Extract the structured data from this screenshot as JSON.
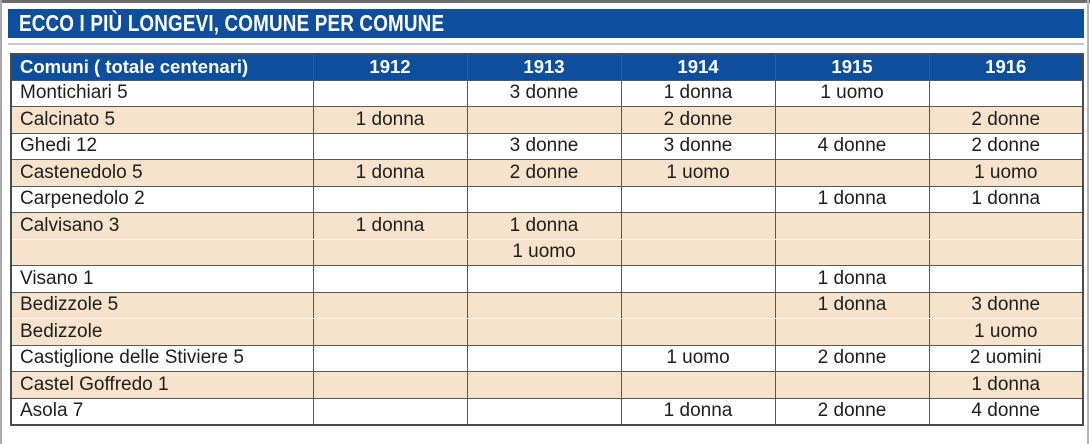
{
  "title": {
    "text": "ECCO I PIÙ LONGEVI, COMUNE PER COMUNE"
  },
  "colors": {
    "accent_blue": "#0e4f9d",
    "row_shaded": "#f7e3cc",
    "grid_border": "#57585b",
    "text": "#1d1d1b",
    "header_text": "#ffffff"
  },
  "table": {
    "header": {
      "comuni": "Comuni ( totale centenari)",
      "years": [
        "1912",
        "1913",
        "1914",
        "1915",
        "1916"
      ]
    },
    "rows": [
      {
        "comune": "Montichiari 5",
        "cells": [
          "",
          "3 donne",
          "1 donna",
          "1 uomo",
          ""
        ],
        "shaded": false
      },
      {
        "comune": "Calcinato 5",
        "cells": [
          "1 donna",
          "",
          "2 donne",
          "",
          "2 donne"
        ],
        "shaded": true
      },
      {
        "comune": "Ghedi 12",
        "cells": [
          "",
          "3 donne",
          "3 donne",
          "4 donne",
          "2 donne"
        ],
        "shaded": false
      },
      {
        "comune": "Castenedolo 5",
        "cells": [
          "1 donna",
          "2 donne",
          "1 uomo",
          "",
          "1 uomo"
        ],
        "shaded": true
      },
      {
        "comune": "Carpenedolo 2",
        "cells": [
          "",
          "",
          "",
          "1 donna",
          "1 donna"
        ],
        "shaded": false
      },
      {
        "comune": "Calvisano 3",
        "cells": [
          "1 donna",
          "1 donna",
          "",
          "",
          ""
        ],
        "shaded": true,
        "divider_below": "light"
      },
      {
        "comune": "",
        "cells": [
          "",
          "1 uomo",
          "",
          "",
          ""
        ],
        "shaded": true,
        "divider_above": "light"
      },
      {
        "comune": "Visano 1",
        "cells": [
          "",
          "",
          "",
          "1 donna",
          ""
        ],
        "shaded": false
      },
      {
        "comune": "Bedizzole 5",
        "cells": [
          "",
          "",
          "",
          "1 donna",
          "3 donne"
        ],
        "shaded": true,
        "divider_below": "light"
      },
      {
        "comune": "Bedizzole",
        "cells": [
          "",
          "",
          "",
          "",
          "1 uomo"
        ],
        "shaded": true,
        "divider_above": "light"
      },
      {
        "comune": "Castiglione delle Stiviere 5",
        "cells": [
          "",
          "",
          "1 uomo",
          "2 donne",
          "2 uomini"
        ],
        "shaded": false
      },
      {
        "comune": "Castel Goffredo 1",
        "cells": [
          "",
          "",
          "",
          "",
          "1 donna"
        ],
        "shaded": true
      },
      {
        "comune": "Asola 7",
        "cells": [
          "",
          "",
          "1 donna",
          "2 donne",
          "4 donne"
        ],
        "shaded": false
      }
    ]
  }
}
